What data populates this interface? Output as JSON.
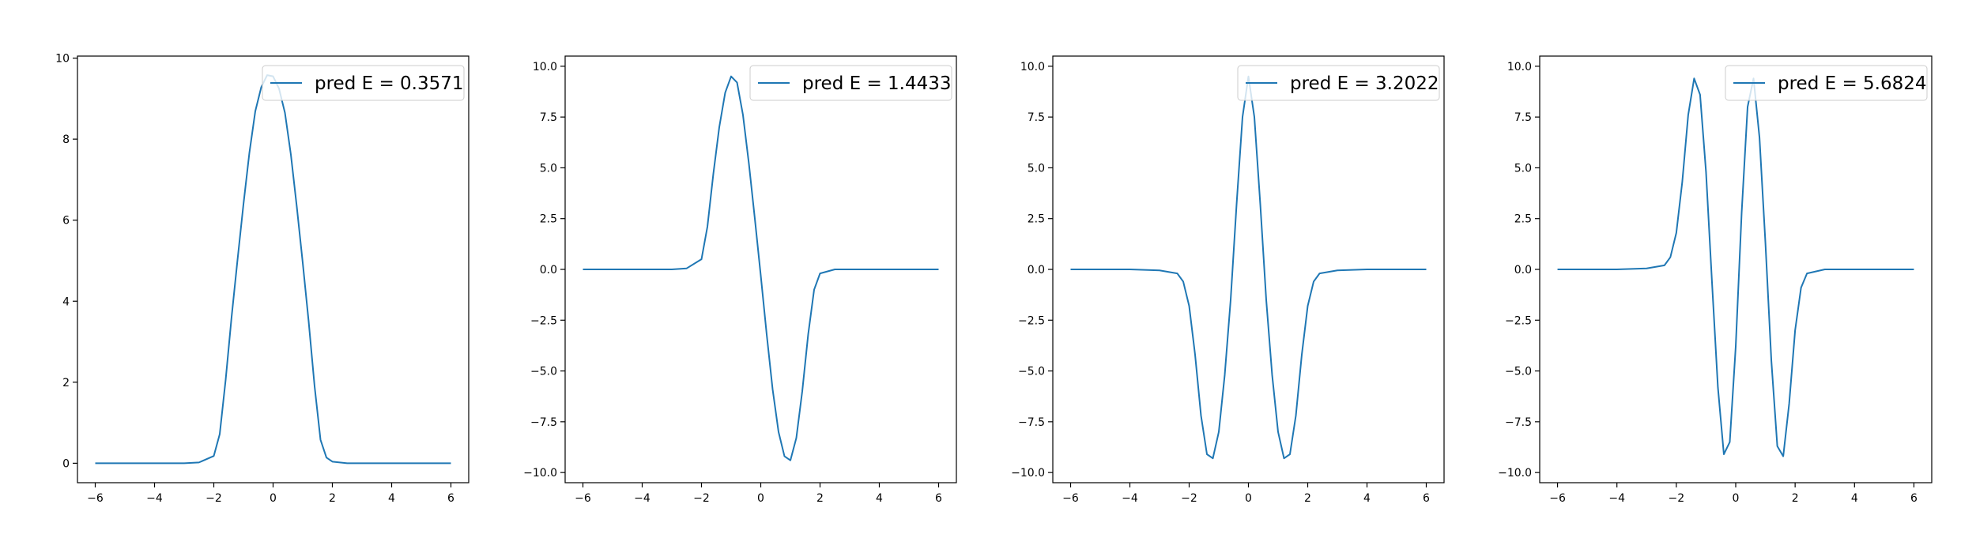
{
  "figure": {
    "background": "#ffffff",
    "line_color": "#1f77b4",
    "axis_color": "#000000",
    "legend_border_color": "#cccccc"
  },
  "chart_data": [
    {
      "type": "line",
      "title": "",
      "xlabel": "",
      "ylabel": "",
      "xlim": [
        -6.6,
        6.6
      ],
      "ylim": [
        -0.48,
        10.05
      ],
      "x_ticks": [
        -6,
        -4,
        -2,
        0,
        2,
        4,
        6
      ],
      "y_ticks": [
        0,
        2,
        4,
        6,
        8,
        10
      ],
      "y_tick_labels": [
        "0",
        "2",
        "4",
        "6",
        "8",
        "10"
      ],
      "grid": false,
      "legend_position": "top-right",
      "series": [
        {
          "name": "pred E = 0.3571",
          "x": [
            -6,
            -5,
            -4,
            -3,
            -2.5,
            -2,
            -1.8,
            -1.6,
            -1.4,
            -1.2,
            -1,
            -0.8,
            -0.6,
            -0.4,
            -0.2,
            0,
            0.2,
            0.4,
            0.6,
            0.8,
            1,
            1.2,
            1.4,
            1.6,
            1.8,
            2,
            2.5,
            3,
            4,
            5,
            6
          ],
          "y": [
            0,
            0,
            0,
            0,
            0.02,
            0.18,
            0.72,
            2.06,
            3.61,
            5.02,
            6.39,
            7.66,
            8.69,
            9.28,
            9.58,
            9.55,
            9.25,
            8.65,
            7.62,
            6.33,
            4.95,
            3.5,
            1.9,
            0.58,
            0.14,
            0.04,
            0,
            0,
            0,
            0,
            0
          ]
        }
      ]
    },
    {
      "type": "line",
      "title": "",
      "xlabel": "",
      "ylabel": "",
      "xlim": [
        -6.6,
        6.6
      ],
      "ylim": [
        -10.5,
        10.5
      ],
      "x_ticks": [
        -6,
        -4,
        -2,
        0,
        2,
        4,
        6
      ],
      "y_ticks": [
        -10,
        -7.5,
        -5,
        -2.5,
        0,
        2.5,
        5,
        7.5,
        10
      ],
      "y_tick_labels": [
        "−10.0",
        "−7.5",
        "−5.0",
        "−2.5",
        "0.0",
        "2.5",
        "5.0",
        "7.5",
        "10.0"
      ],
      "grid": false,
      "legend_position": "top-right",
      "series": [
        {
          "name": "pred E = 1.4433",
          "x": [
            -6,
            -5,
            -4,
            -3,
            -2.5,
            -2,
            -1.8,
            -1.6,
            -1.4,
            -1.2,
            -1,
            -0.8,
            -0.6,
            -0.4,
            -0.2,
            0,
            0.2,
            0.4,
            0.6,
            0.8,
            1,
            1.2,
            1.4,
            1.6,
            1.8,
            2,
            2.5,
            3,
            4,
            5,
            6
          ],
          "y": [
            0,
            0,
            0,
            0,
            0.05,
            0.5,
            2.1,
            4.7,
            7.0,
            8.7,
            9.5,
            9.2,
            7.6,
            5.2,
            2.5,
            -0.3,
            -3.2,
            -5.9,
            -8.0,
            -9.2,
            -9.4,
            -8.3,
            -6.0,
            -3.2,
            -1.0,
            -0.2,
            0,
            0,
            0,
            0,
            0
          ]
        }
      ]
    },
    {
      "type": "line",
      "title": "",
      "xlabel": "",
      "ylabel": "",
      "xlim": [
        -6.6,
        6.6
      ],
      "ylim": [
        -10.5,
        10.5
      ],
      "x_ticks": [
        -6,
        -4,
        -2,
        0,
        2,
        4,
        6
      ],
      "y_ticks": [
        -10,
        -7.5,
        -5,
        -2.5,
        0,
        2.5,
        5,
        7.5,
        10
      ],
      "y_tick_labels": [
        "−10.0",
        "−7.5",
        "−5.0",
        "−2.5",
        "0.0",
        "2.5",
        "5.0",
        "7.5",
        "10.0"
      ],
      "grid": false,
      "legend_position": "top-right",
      "series": [
        {
          "name": "pred E = 3.2022",
          "x": [
            -6,
            -5,
            -4,
            -3,
            -2.4,
            -2.2,
            -2,
            -1.8,
            -1.6,
            -1.4,
            -1.2,
            -1,
            -0.8,
            -0.6,
            -0.4,
            -0.2,
            0,
            0.2,
            0.4,
            0.6,
            0.8,
            1,
            1.2,
            1.4,
            1.6,
            1.8,
            2,
            2.2,
            2.4,
            3,
            4,
            5,
            6
          ],
          "y": [
            0,
            0,
            0,
            -0.05,
            -0.2,
            -0.6,
            -1.8,
            -4.2,
            -7.2,
            -9.1,
            -9.3,
            -8.0,
            -5.2,
            -1.5,
            3.2,
            7.5,
            9.5,
            7.5,
            3.2,
            -1.5,
            -5.2,
            -8.0,
            -9.3,
            -9.1,
            -7.2,
            -4.2,
            -1.8,
            -0.6,
            -0.2,
            -0.05,
            0,
            0,
            0
          ]
        }
      ]
    },
    {
      "type": "line",
      "title": "",
      "xlabel": "",
      "ylabel": "",
      "xlim": [
        -6.6,
        6.6
      ],
      "ylim": [
        -10.5,
        10.5
      ],
      "x_ticks": [
        -6,
        -4,
        -2,
        0,
        2,
        4,
        6
      ],
      "y_ticks": [
        -10,
        -7.5,
        -5,
        -2.5,
        0,
        2.5,
        5,
        7.5,
        10
      ],
      "y_tick_labels": [
        "−10.0",
        "−7.5",
        "−5.0",
        "−2.5",
        "0.0",
        "2.5",
        "5.0",
        "7.5",
        "10.0"
      ],
      "grid": false,
      "legend_position": "top-right",
      "series": [
        {
          "name": "pred E = 5.6824",
          "x": [
            -6,
            -5,
            -4,
            -3,
            -2.4,
            -2.2,
            -2,
            -1.8,
            -1.6,
            -1.4,
            -1.2,
            -1,
            -0.8,
            -0.6,
            -0.4,
            -0.2,
            0,
            0.2,
            0.4,
            0.6,
            0.8,
            1,
            1.2,
            1.4,
            1.6,
            1.8,
            2,
            2.2,
            2.4,
            3,
            4,
            5,
            6
          ],
          "y": [
            0,
            0,
            0,
            0.05,
            0.2,
            0.6,
            1.8,
            4.3,
            7.6,
            9.4,
            8.6,
            4.8,
            -0.6,
            -5.8,
            -9.1,
            -8.5,
            -3.8,
            2.8,
            8.0,
            9.4,
            6.5,
            1.3,
            -4.5,
            -8.7,
            -9.2,
            -6.6,
            -3.0,
            -0.9,
            -0.2,
            0,
            0,
            0,
            0
          ]
        }
      ]
    }
  ]
}
